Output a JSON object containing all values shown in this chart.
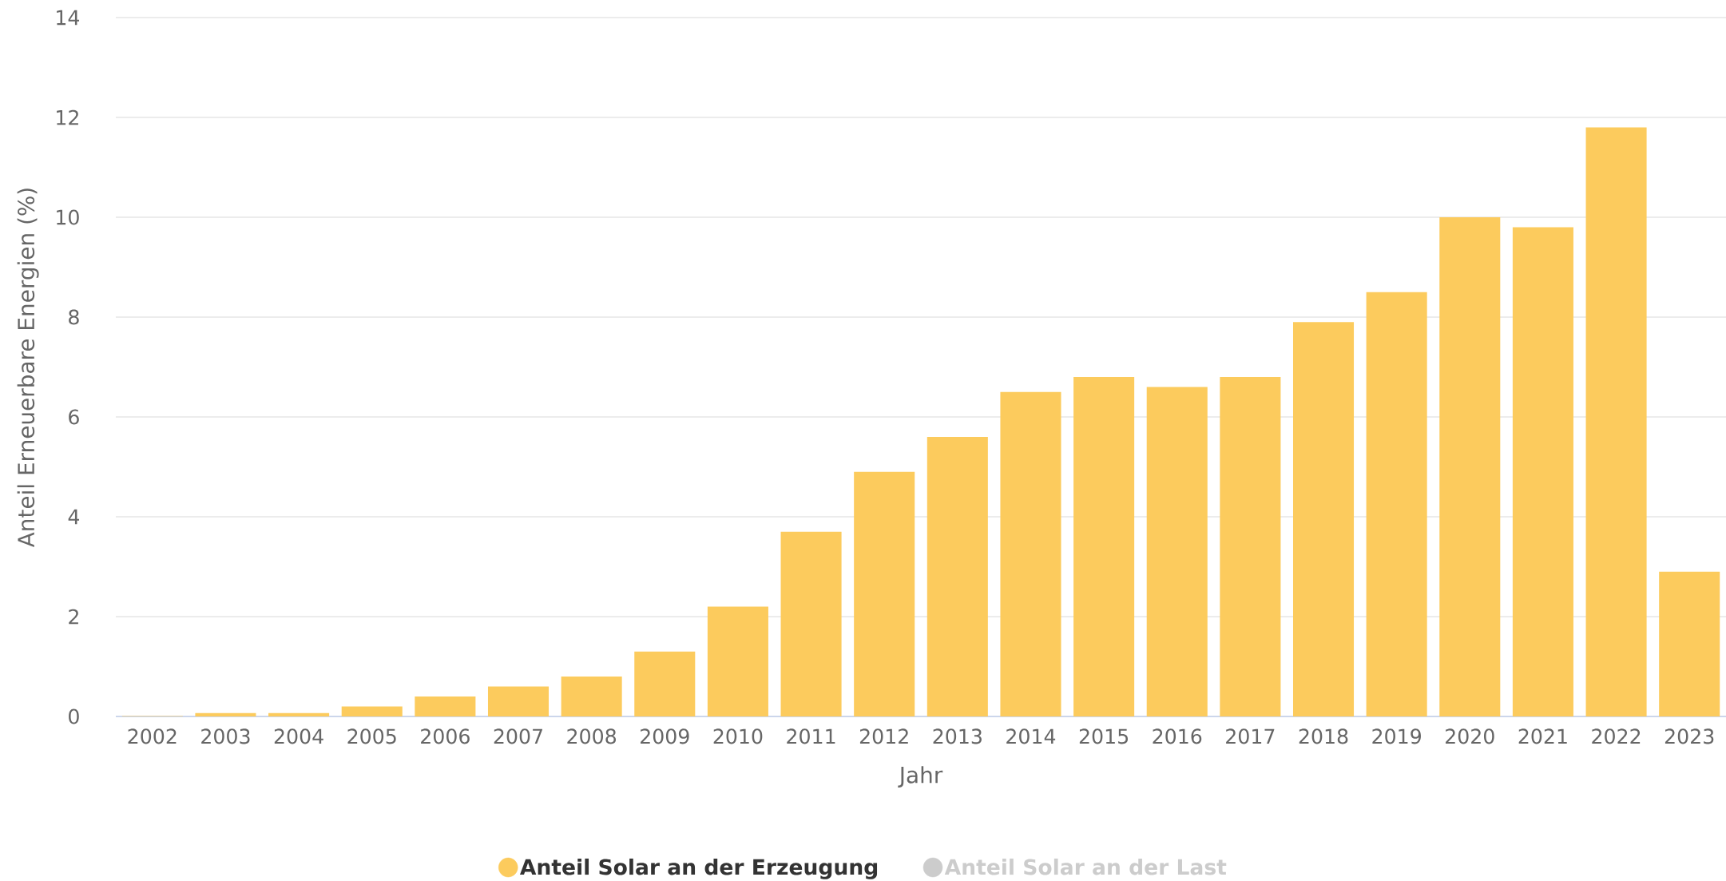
{
  "chart_data": {
    "type": "bar",
    "xlabel": "Jahr",
    "ylabel": "Anteil Erneuerbare Energien (%)",
    "categories": [
      "2002",
      "2003",
      "2004",
      "2005",
      "2006",
      "2007",
      "2008",
      "2009",
      "2010",
      "2011",
      "2012",
      "2013",
      "2014",
      "2015",
      "2016",
      "2017",
      "2018",
      "2019",
      "2020",
      "2021",
      "2022",
      "2023"
    ],
    "series": [
      {
        "name": "Anteil Solar an der Erzeugung",
        "color": "#fccb5d",
        "values": [
          0.01,
          0.07,
          0.07,
          0.2,
          0.4,
          0.6,
          0.8,
          1.3,
          2.2,
          3.7,
          4.9,
          5.6,
          6.5,
          6.8,
          6.6,
          6.8,
          7.9,
          8.5,
          10.0,
          9.8,
          11.8,
          2.9
        ]
      },
      {
        "name": "Anteil Solar an der Last",
        "color": "#cccccc",
        "values": [
          null,
          null,
          null,
          null,
          null,
          null,
          null,
          null,
          null,
          null,
          null,
          null,
          null,
          null,
          null,
          null,
          null,
          null,
          null,
          null,
          null,
          null
        ]
      }
    ],
    "ylim": [
      0,
      14
    ],
    "yticks": [
      0,
      2,
      4,
      6,
      8,
      10,
      12,
      14
    ],
    "grid": "y",
    "legend": "bottom"
  }
}
